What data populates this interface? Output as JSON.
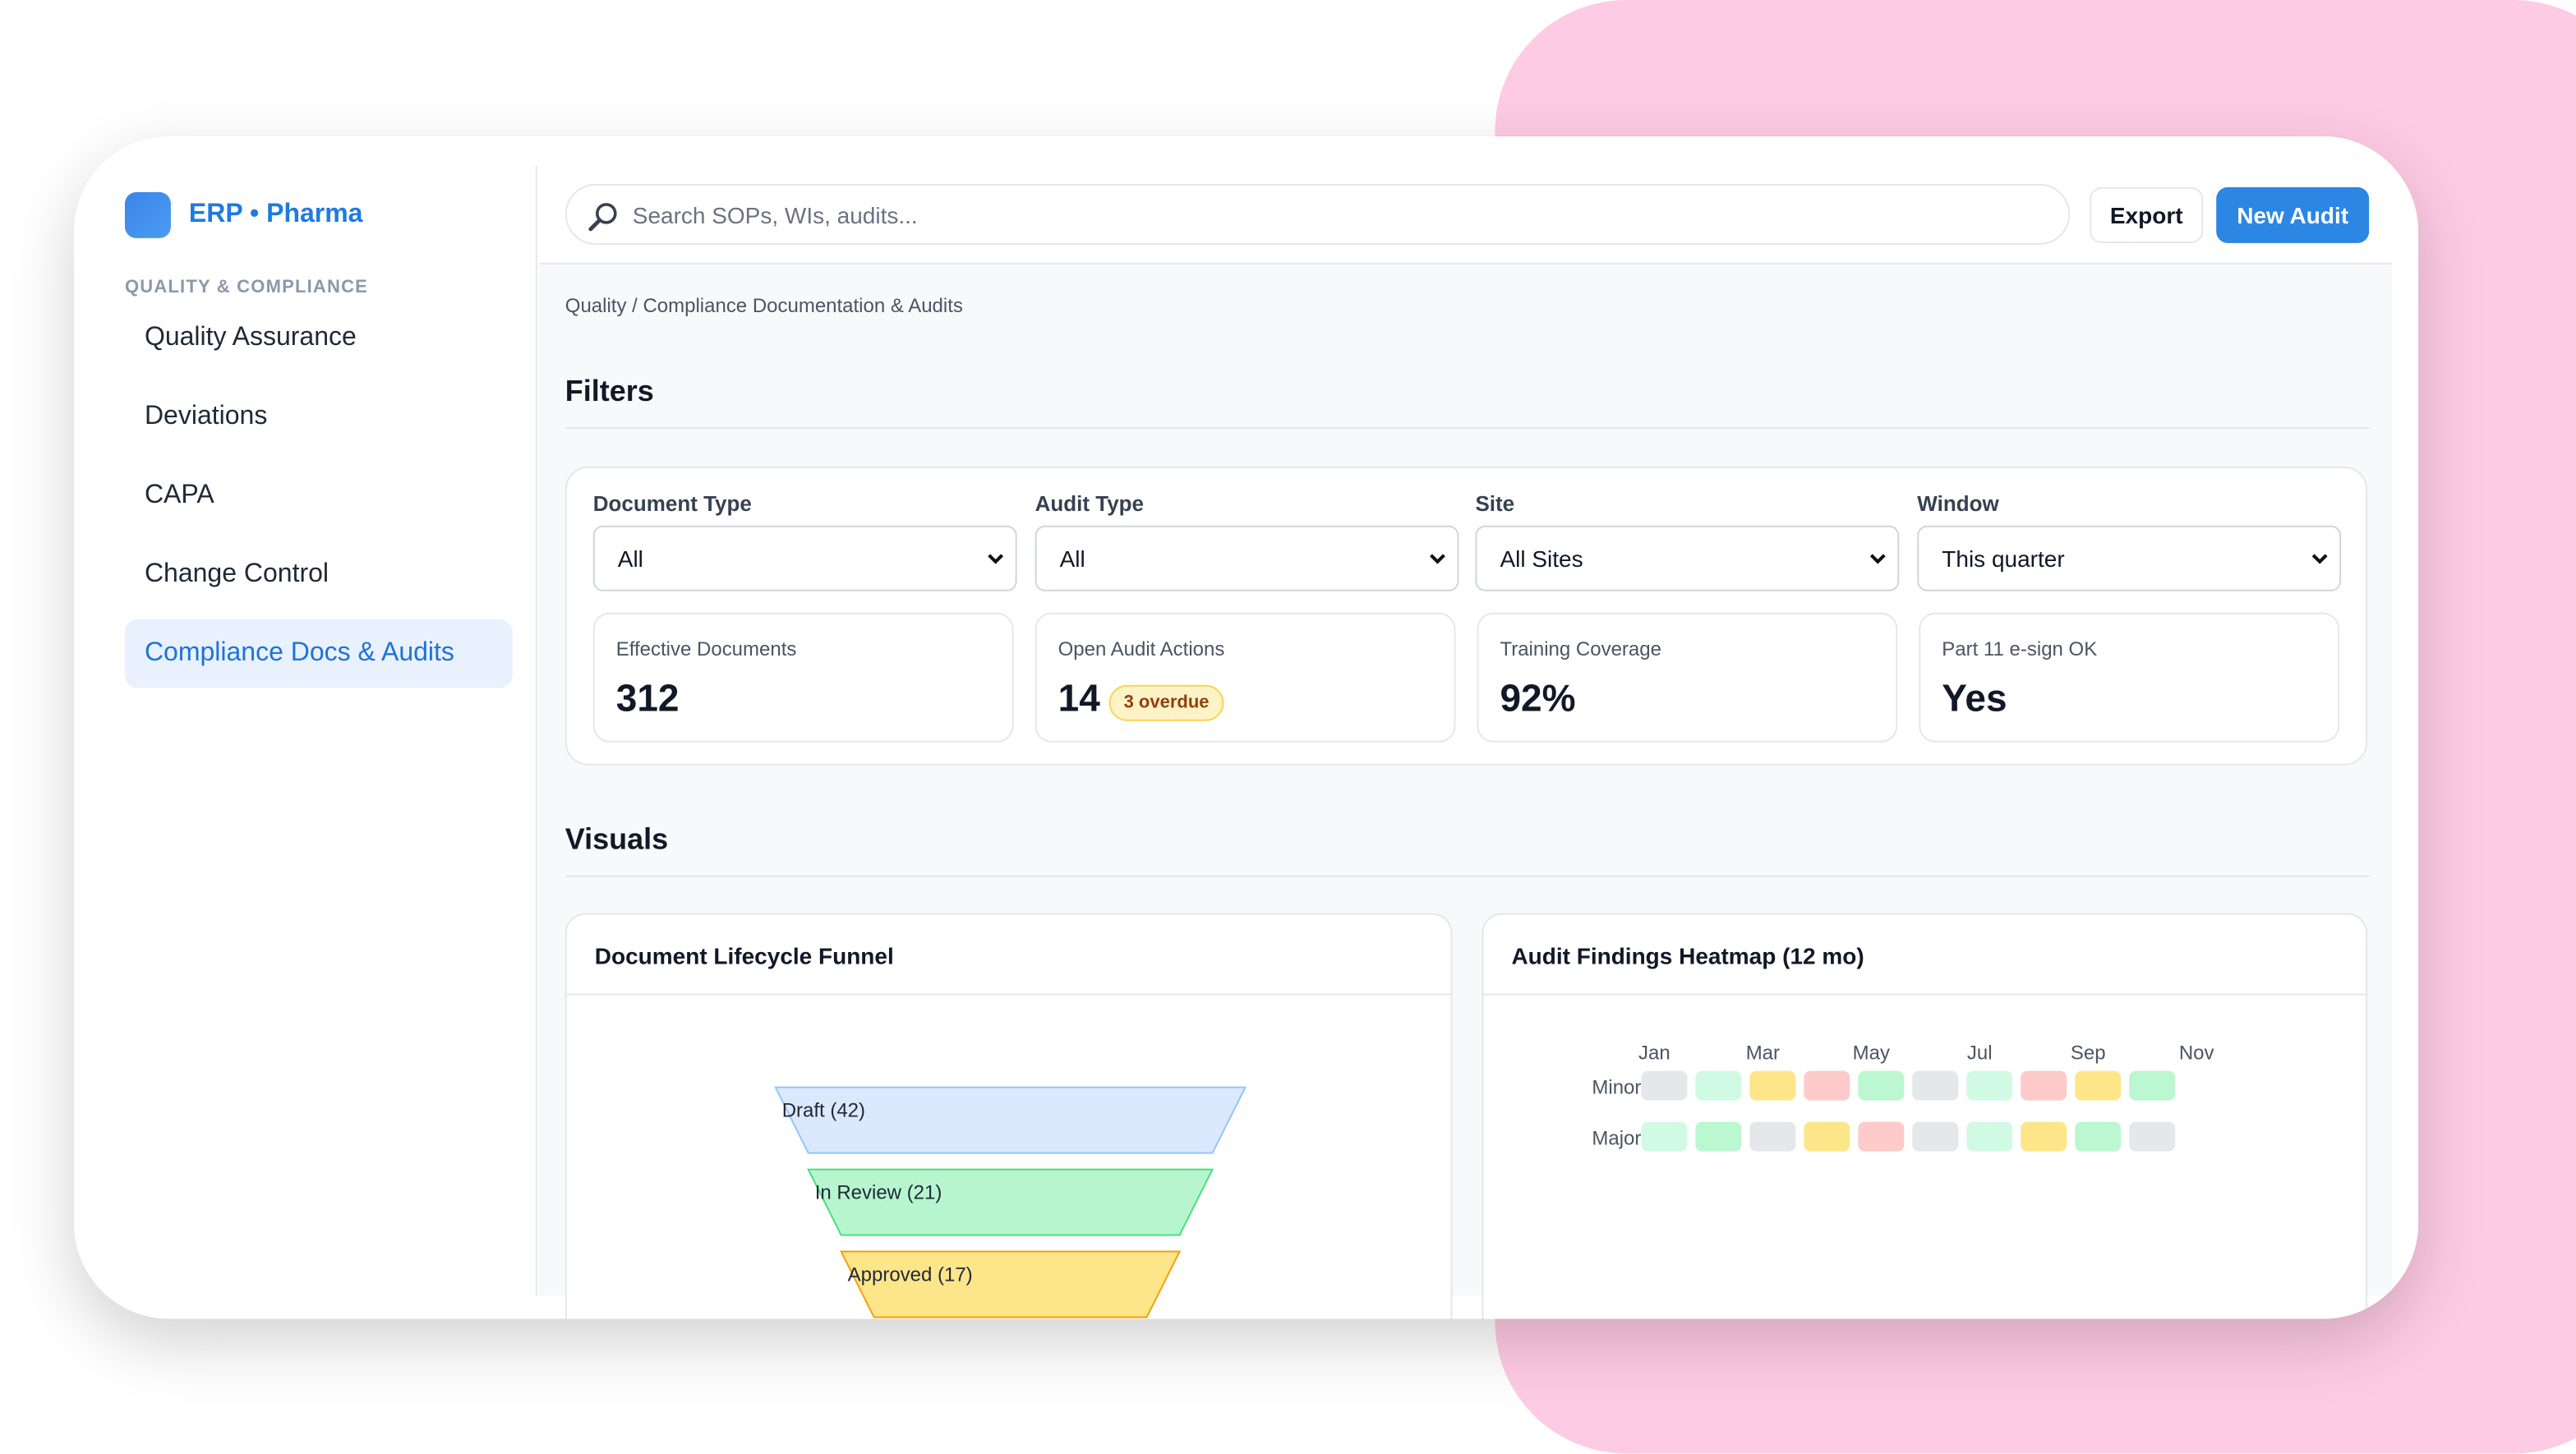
{
  "app": {
    "brand": "ERP • Pharma",
    "section": "QUALITY & COMPLIANCE",
    "accent": "#2b87e3"
  },
  "sidebar": {
    "items": [
      {
        "label": "Quality Assurance",
        "active": false
      },
      {
        "label": "Deviations",
        "active": false
      },
      {
        "label": "CAPA",
        "active": false
      },
      {
        "label": "Change Control",
        "active": false
      },
      {
        "label": "Compliance Docs & Audits",
        "active": true
      }
    ]
  },
  "header": {
    "search_placeholder": "Search SOPs, WIs, audits...",
    "search_icon": "magnifier-icon",
    "export_label": "Export",
    "new_audit_label": "New Audit"
  },
  "breadcrumb": "Quality / Compliance Documentation & Audits",
  "filters": {
    "title": "Filters",
    "fields": [
      {
        "label": "Document Type",
        "value": "All"
      },
      {
        "label": "Audit Type",
        "value": "All"
      },
      {
        "label": "Site",
        "value": "All Sites"
      },
      {
        "label": "Window",
        "value": "This quarter"
      }
    ]
  },
  "kpis": [
    {
      "label": "Effective Documents",
      "value": "312"
    },
    {
      "label": "Open Audit Actions",
      "value": "14",
      "badge": "3 overdue"
    },
    {
      "label": "Training Coverage",
      "value": "92%"
    },
    {
      "label": "Part 11 e-sign OK",
      "value": "Yes"
    }
  ],
  "visuals": {
    "title": "Visuals"
  },
  "chart_data": [
    {
      "type": "funnel",
      "title": "Document Lifecycle Funnel",
      "stages": [
        {
          "label": "Draft (42)",
          "value": 42,
          "fill": "#dbe8fd",
          "stroke": "#93c5fd"
        },
        {
          "label": "In Review (21)",
          "value": 21,
          "fill": "#b7f5cf",
          "stroke": "#4ade80"
        },
        {
          "label": "Approved (17)",
          "value": 17,
          "fill": "#fde58a",
          "stroke": "#f59e0b"
        }
      ]
    },
    {
      "type": "heatmap",
      "title": "Audit Findings Heatmap (12 mo)",
      "x_tick_labels": [
        "Jan",
        "Mar",
        "May",
        "Jul",
        "Sep",
        "Nov"
      ],
      "rows": [
        {
          "label": "Minor",
          "cells": [
            "#e5e7eb",
            "#d1fae5",
            "#fde68a",
            "#fecaca",
            "#bbf7d0",
            "#e5e7eb",
            "#d1fae5",
            "#fecaca",
            "#fde68a",
            "#bbf7d0"
          ]
        },
        {
          "label": "Major",
          "cells": [
            "#d1fae5",
            "#bbf7d0",
            "#e5e7eb",
            "#fde68a",
            "#fecaca",
            "#e5e7eb",
            "#d1fae5",
            "#fde68a",
            "#bbf7d0",
            "#e5e7eb"
          ]
        }
      ]
    }
  ]
}
